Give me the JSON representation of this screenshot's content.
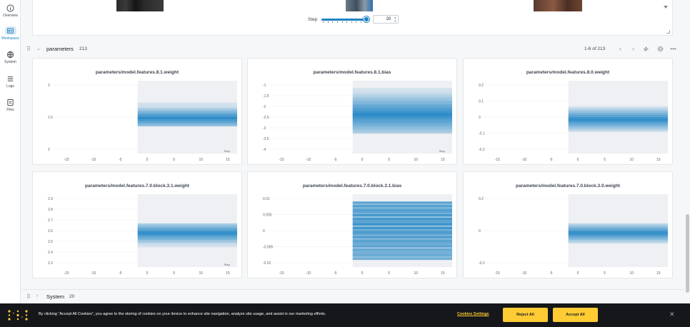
{
  "sidebar": {
    "items": [
      {
        "label": "Overview",
        "icon": "info-icon"
      },
      {
        "label": "Workspace",
        "icon": "workspace-icon",
        "active": true
      },
      {
        "label": "System",
        "icon": "cpu-icon"
      },
      {
        "label": "Logs",
        "icon": "logs-icon"
      },
      {
        "label": "Files",
        "icon": "file-icon"
      }
    ]
  },
  "media": {
    "step_label": "Step",
    "step_value": "20",
    "slider_fraction": 0.92
  },
  "section": {
    "title": "parameters",
    "count": "213",
    "pager": "1-6 of 213"
  },
  "charts": [
    {
      "title": "parameters/model.features.8.1.weight",
      "yticks": [
        "3",
        "2.5",
        "2"
      ],
      "xticks": [
        "-15",
        "-10",
        "-5",
        "0",
        "5",
        "10",
        "15"
      ],
      "step_label": "Step"
    },
    {
      "title": "parameters/model.features.8.1.bias",
      "yticks": [
        "-1",
        "-1.5",
        "-2",
        "-2.5",
        "-3",
        "-3.5",
        "-4"
      ],
      "xticks": [
        "-15",
        "-10",
        "-5",
        "0",
        "5",
        "10",
        "15"
      ],
      "step_label": "Step"
    },
    {
      "title": "parameters/model.features.8.0.weight",
      "yticks": [
        "0.2",
        "0.1",
        "0",
        "-0.1",
        "-0.2"
      ],
      "xticks": [
        "-15",
        "-10",
        "-5",
        "0",
        "5",
        "10",
        "15"
      ],
      "step_label": ""
    },
    {
      "title": "parameters/model.features.7.0.block.3.1.weight",
      "yticks": [
        "2.9",
        "2.8",
        "2.7",
        "2.6",
        "2.5",
        "2.4",
        "2.3"
      ],
      "xticks": [
        "-15",
        "-10",
        "-5",
        "0",
        "5",
        "10",
        "15"
      ],
      "step_label": "Step"
    },
    {
      "title": "parameters/model.features.7.0.block.3.1.bias",
      "yticks": [
        "0.01",
        "0.005",
        "0",
        "-0.005",
        "-0.01"
      ],
      "xticks": [
        "-15",
        "-10",
        "-5",
        "0",
        "5",
        "10",
        "15"
      ],
      "step_label": ""
    },
    {
      "title": "parameters/model.features.7.0.block.3.0.weight",
      "yticks": [
        "0.2",
        "0",
        "-0.2"
      ],
      "xticks": [
        "-15",
        "-10",
        "-5",
        "0",
        "5",
        "10",
        "15"
      ],
      "step_label": ""
    }
  ],
  "system_section": {
    "title": "System",
    "count": "20"
  },
  "cookie": {
    "text": "By clicking “Accept All Cookies”, you agree to the storing of cookies on your device to enhance site navigation, analyze site usage, and assist in our marketing efforts.",
    "settings_label": "Cookies Settings",
    "reject_label": "Reject All",
    "accept_label": "Accept All"
  },
  "colors": {
    "accent": "#1d83c4",
    "banner_bg": "#16171a",
    "banner_button": "#ffcc33"
  }
}
